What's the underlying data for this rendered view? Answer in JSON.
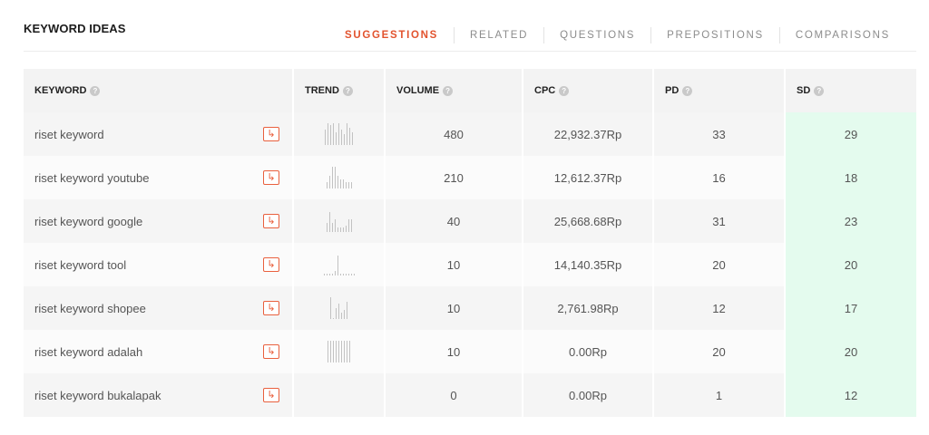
{
  "section_title": "KEYWORD IDEAS",
  "tabs": [
    {
      "label": "SUGGESTIONS",
      "active": true
    },
    {
      "label": "RELATED",
      "active": false
    },
    {
      "label": "QUESTIONS",
      "active": false
    },
    {
      "label": "PREPOSITIONS",
      "active": false
    },
    {
      "label": "COMPARISONS",
      "active": false
    }
  ],
  "columns": {
    "keyword": "KEYWORD",
    "trend": "TREND",
    "volume": "VOLUME",
    "cpc": "CPC",
    "pd": "PD",
    "sd": "SD"
  },
  "help_glyph": "?",
  "action_icon": "arrow-corner-down-right-icon",
  "action_glyph": "↳",
  "colors": {
    "accent": "#e2532e",
    "sd_highlight": "#e4fbee",
    "header_bg": "#f3f3f3"
  },
  "rows": [
    {
      "keyword": "riset keyword",
      "trend": [
        7,
        10,
        9,
        10,
        6,
        10,
        7,
        5,
        10,
        8,
        6
      ],
      "volume": "480",
      "cpc": "22,932.37Rp",
      "pd": "33",
      "sd": "29"
    },
    {
      "keyword": "riset keyword youtube",
      "trend": [
        3,
        6,
        10,
        10,
        6,
        4,
        4,
        3,
        3,
        3
      ],
      "volume": "210",
      "cpc": "12,612.37Rp",
      "pd": "16",
      "sd": "18"
    },
    {
      "keyword": "riset keyword google",
      "trend": [
        4,
        9,
        4,
        6,
        2,
        2,
        2,
        3,
        6,
        6
      ],
      "volume": "40",
      "cpc": "25,668.68Rp",
      "pd": "31",
      "sd": "23"
    },
    {
      "keyword": "riset keyword tool",
      "trend": [
        1,
        1,
        1,
        1,
        2,
        9,
        1,
        1,
        1,
        1,
        1,
        1
      ],
      "volume": "10",
      "cpc": "14,140.35Rp",
      "pd": "20",
      "sd": "20"
    },
    {
      "keyword": "riset keyword shopee",
      "trend": [
        10,
        0,
        5,
        7,
        3,
        4,
        8
      ],
      "volume": "10",
      "cpc": "2,761.98Rp",
      "pd": "12",
      "sd": "17"
    },
    {
      "keyword": "riset keyword adalah",
      "trend": [
        10,
        10,
        10,
        10,
        10,
        10,
        10,
        10,
        10
      ],
      "volume": "10",
      "cpc": "0.00Rp",
      "pd": "20",
      "sd": "20"
    },
    {
      "keyword": "riset keyword bukalapak",
      "trend": [],
      "volume": "0",
      "cpc": "0.00Rp",
      "pd": "1",
      "sd": "12"
    }
  ]
}
